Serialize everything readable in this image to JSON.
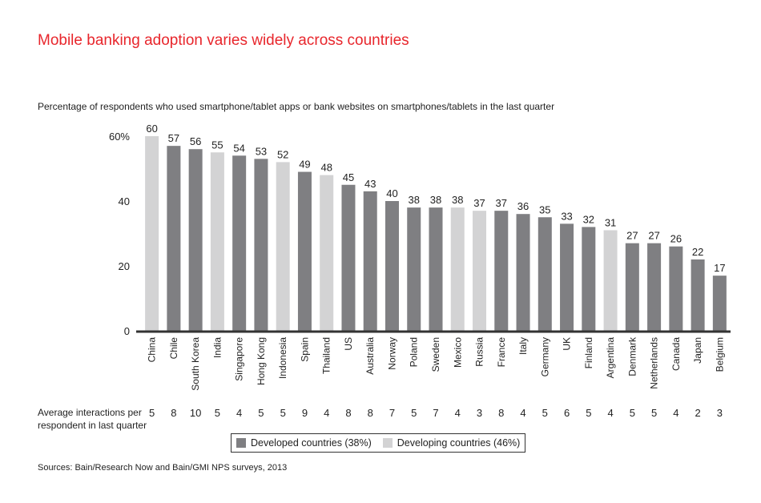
{
  "title": "Mobile banking adoption varies widely across countries",
  "subtitle": "Percentage of respondents who used smartphone/tablet apps or bank websites on smartphones/tablets in the last quarter",
  "interactions_label": "Average interactions per respondent in last quarter",
  "legend": {
    "developed": {
      "label": "Developed countries (38%)",
      "color": "#7f7f82"
    },
    "developing": {
      "label": "Developing countries (46%)",
      "color": "#d3d3d4"
    }
  },
  "source": "Sources: Bain/Research Now and Bain/GMI NPS surveys, 2013",
  "chart_data": {
    "type": "bar",
    "title": "Mobile banking adoption varies widely across countries",
    "ylabel": "",
    "xlabel": "",
    "ylim": [
      0,
      60
    ],
    "yticks": [
      0,
      20,
      40,
      60
    ],
    "ytick_labels": [
      "0",
      "20",
      "40",
      "60%"
    ],
    "categories": [
      "China",
      "Chile",
      "South Korea",
      "India",
      "Singapore",
      "Hong Kong",
      "Indonesia",
      "Spain",
      "Thailand",
      "US",
      "Australia",
      "Norway",
      "Poland",
      "Sweden",
      "Mexico",
      "Russia",
      "France",
      "Italy",
      "Germany",
      "UK",
      "Finland",
      "Argentina",
      "Denmark",
      "Netherlands",
      "Canada",
      "Japan",
      "Belgium"
    ],
    "values": [
      60,
      57,
      56,
      55,
      54,
      53,
      52,
      49,
      48,
      45,
      43,
      40,
      38,
      38,
      38,
      37,
      37,
      36,
      35,
      33,
      32,
      31,
      27,
      27,
      26,
      22,
      17
    ],
    "group": [
      "developing",
      "developed",
      "developed",
      "developing",
      "developed",
      "developed",
      "developing",
      "developed",
      "developing",
      "developed",
      "developed",
      "developed",
      "developed",
      "developed",
      "developing",
      "developing",
      "developed",
      "developed",
      "developed",
      "developed",
      "developed",
      "developing",
      "developed",
      "developed",
      "developed",
      "developed",
      "developed"
    ],
    "interactions": [
      5,
      8,
      10,
      5,
      4,
      5,
      5,
      9,
      4,
      8,
      8,
      7,
      5,
      7,
      4,
      3,
      8,
      4,
      5,
      6,
      5,
      4,
      5,
      5,
      4,
      2,
      3
    ]
  }
}
